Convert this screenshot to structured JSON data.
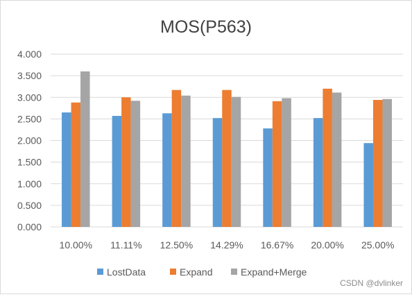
{
  "chart_data": {
    "type": "bar",
    "title": "MOS(P563)",
    "xlabel": "",
    "ylabel": "",
    "categories": [
      "10.00%",
      "11.11%",
      "12.50%",
      "14.29%",
      "16.67%",
      "20.00%",
      "25.00%"
    ],
    "series": [
      {
        "name": "LostData",
        "color": "#5b9bd5",
        "values": [
          2.65,
          2.57,
          2.63,
          2.52,
          2.28,
          2.52,
          1.94
        ]
      },
      {
        "name": "Expand",
        "color": "#ed7d31",
        "values": [
          2.88,
          3.0,
          3.17,
          3.17,
          2.91,
          3.2,
          2.94
        ]
      },
      {
        "name": "Expand+Merge",
        "color": "#a5a5a5",
        "values": [
          3.6,
          2.92,
          3.04,
          3.01,
          2.98,
          3.11,
          2.96
        ]
      }
    ],
    "ylim": [
      0,
      4
    ],
    "yticks": [
      "0.000",
      "0.500",
      "1.000",
      "1.500",
      "2.000",
      "2.500",
      "3.000",
      "3.500",
      "4.000"
    ],
    "grid": true,
    "legend_position": "bottom"
  },
  "watermark": "CSDN @dvlinker"
}
